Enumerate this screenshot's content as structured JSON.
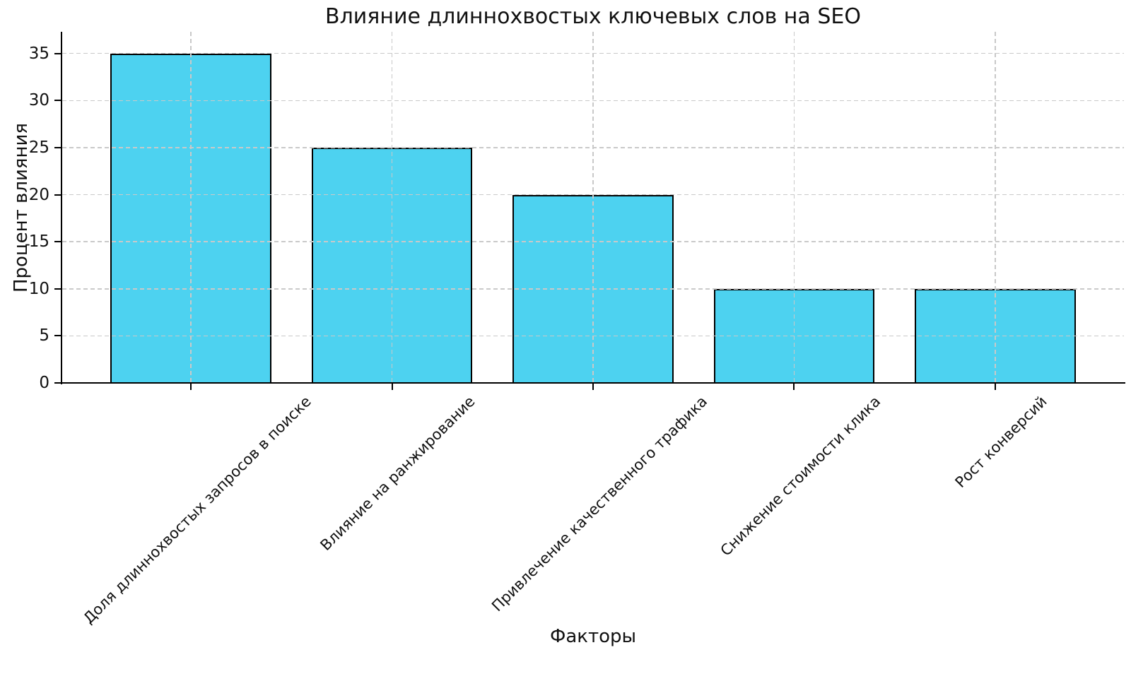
{
  "chart_data": {
    "type": "bar",
    "title": "Влияние длиннохвостых ключевых слов на SEO",
    "xlabel": "Факторы",
    "ylabel": "Процент влияния",
    "categories": [
      "Доля длиннохвостых запросов в поиске",
      "Влияние на ранжирование",
      "Привлечение качественного трафика",
      "Снижение стоимости клика",
      "Рост конверсий"
    ],
    "values": [
      35,
      25,
      20,
      10,
      10
    ],
    "yticks": [
      0,
      5,
      10,
      15,
      20,
      25,
      30,
      35
    ],
    "ylim": [
      0,
      37.3
    ],
    "bar_color": "#4dd2f0",
    "bar_edge_color": "#000000",
    "grid": "dashed",
    "grid_color": "#c9c9c9",
    "legend": "none",
    "layout": {
      "grid_on": true,
      "grid_above_bars": true,
      "spines": [
        "left",
        "bottom"
      ],
      "xtick_rotation_deg": 45
    }
  }
}
